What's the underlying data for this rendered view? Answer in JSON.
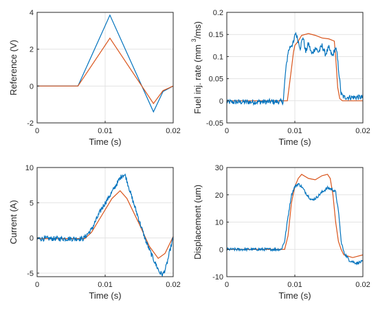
{
  "chart_data": [
    {
      "type": "line",
      "xlabel": "Time (s)",
      "ylabel": "Reference (V)",
      "xlim": [
        0,
        0.02
      ],
      "ylim": [
        -2,
        4
      ],
      "xticks": [
        {
          "v": 0,
          "t": "0"
        },
        {
          "v": 0.01,
          "t": "0.01"
        },
        {
          "v": 0.02,
          "t": "0.02"
        }
      ],
      "yticks": [
        {
          "v": -2,
          "t": "-2"
        },
        {
          "v": 0,
          "t": "0"
        },
        {
          "v": 2,
          "t": "2"
        },
        {
          "v": 4,
          "t": "4"
        }
      ],
      "grid": true,
      "series": [
        {
          "color": "#0072BD",
          "x": [
            0,
            0.006,
            0.0107,
            0.0171,
            0.0185,
            0.02
          ],
          "y": [
            0,
            0,
            3.85,
            -1.4,
            -0.3,
            0
          ]
        },
        {
          "color": "#D95319",
          "x": [
            0,
            0.006,
            0.0107,
            0.0171,
            0.0185,
            0.02
          ],
          "y": [
            0,
            0,
            2.6,
            -0.95,
            -0.25,
            0
          ]
        }
      ]
    },
    {
      "type": "line",
      "xlabel": "Time (s)",
      "ylabel": "Fuel inj. rate (mm",
      "ylabel_sup": "3",
      "ylabel_tail": "/ms)",
      "xlim": [
        0,
        0.02
      ],
      "ylim": [
        -0.05,
        0.2
      ],
      "xticks": [
        {
          "v": 0,
          "t": "0"
        },
        {
          "v": 0.01,
          "t": "0.01"
        },
        {
          "v": 0.02,
          "t": "0.02"
        }
      ],
      "yticks": [
        {
          "v": -0.05,
          "t": "-0.05"
        },
        {
          "v": 0,
          "t": "0"
        },
        {
          "v": 0.05,
          "t": "0.05"
        },
        {
          "v": 0.1,
          "t": "0.1"
        },
        {
          "v": 0.15,
          "t": "0.15"
        },
        {
          "v": 0.2,
          "t": "0.2"
        }
      ],
      "grid": true,
      "series": [
        {
          "color": "#D95319",
          "x": [
            0,
            0.0089,
            0.0094,
            0.0098,
            0.01,
            0.0105,
            0.011,
            0.012,
            0.013,
            0.014,
            0.015,
            0.0158,
            0.016,
            0.0163,
            0.0166,
            0.017,
            0.02
          ],
          "y": [
            0,
            0,
            0.06,
            0.11,
            0.125,
            0.135,
            0.148,
            0.152,
            0.148,
            0.142,
            0.14,
            0.135,
            0.1,
            0.03,
            0.005,
            0,
            0
          ]
        },
        {
          "color": "#0072BD",
          "x": [
            0,
            0.0083,
            0.0086,
            0.009,
            0.0094,
            0.0098,
            0.0101,
            0.0104,
            0.0108,
            0.0112,
            0.0116,
            0.012,
            0.0125,
            0.013,
            0.0135,
            0.014,
            0.0145,
            0.015,
            0.0155,
            0.016,
            0.0162,
            0.0165,
            0.0168,
            0.0172,
            0.02
          ],
          "y": [
            -0.003,
            -0.002,
            0.06,
            0.11,
            0.125,
            0.13,
            0.155,
            0.14,
            0.12,
            0.145,
            0.11,
            0.13,
            0.105,
            0.12,
            0.11,
            0.125,
            0.105,
            0.12,
            0.1,
            0.12,
            0.105,
            0.06,
            0.015,
            0.008,
            0.008
          ],
          "noise": 0.006
        }
      ]
    },
    {
      "type": "line",
      "xlabel": "Time (s)",
      "ylabel": "Current (A)",
      "xlim": [
        0,
        0.02
      ],
      "ylim": [
        -5.5,
        10
      ],
      "xticks": [
        {
          "v": 0,
          "t": "0"
        },
        {
          "v": 0.01,
          "t": "0.01"
        },
        {
          "v": 0.02,
          "t": "0.02"
        }
      ],
      "yticks": [
        {
          "v": -5,
          "t": "-5"
        },
        {
          "v": 0,
          "t": "0"
        },
        {
          "v": 5,
          "t": "5"
        },
        {
          "v": 10,
          "t": "10"
        }
      ],
      "grid": true,
      "series": [
        {
          "color": "#D95319",
          "x": [
            0,
            0.007,
            0.008,
            0.0095,
            0.011,
            0.0122,
            0.0132,
            0.015,
            0.0165,
            0.0178,
            0.0188,
            0.0196,
            0.02
          ],
          "y": [
            -0.1,
            -0.1,
            0.8,
            3.2,
            5.6,
            6.7,
            5.6,
            2.0,
            -1.2,
            -2.9,
            -2.2,
            -0.6,
            0.2
          ],
          "noise": 0
        }
      ]
    },
    {
      "type": "line",
      "xlabel": "Time (s)",
      "ylabel": "Displacement (um)",
      "xlim": [
        0,
        0.02
      ],
      "ylim": [
        -10,
        30
      ],
      "xticks": [
        {
          "v": 0,
          "t": "0"
        },
        {
          "v": 0.01,
          "t": "0.01"
        },
        {
          "v": 0.02,
          "t": "0.02"
        }
      ],
      "yticks": [
        {
          "v": -10,
          "t": "-10"
        },
        {
          "v": 0,
          "t": "0"
        },
        {
          "v": 10,
          "t": "10"
        },
        {
          "v": 20,
          "t": "20"
        },
        {
          "v": 30,
          "t": "30"
        }
      ],
      "grid": true,
      "series": [
        {
          "color": "#D95319",
          "x": [
            0,
            0.0085,
            0.009,
            0.0095,
            0.01,
            0.0105,
            0.011,
            0.012,
            0.013,
            0.014,
            0.0148,
            0.0152,
            0.0156,
            0.016,
            0.0164,
            0.0168,
            0.0172,
            0.0185,
            0.02
          ],
          "y": [
            0,
            0,
            5,
            17,
            23,
            26,
            27.5,
            26,
            25.5,
            27,
            27.5,
            26,
            20,
            10,
            3,
            0,
            -2,
            -3,
            -2
          ]
        },
        {
          "color": "#0072BD",
          "x": [
            0,
            0.008,
            0.0085,
            0.009,
            0.0095,
            0.01,
            0.0105,
            0.011,
            0.0118,
            0.0125,
            0.0132,
            0.014,
            0.0148,
            0.0155,
            0.016,
            0.0165,
            0.0168,
            0.0172,
            0.018,
            0.019,
            0.02
          ],
          "y": [
            0,
            0,
            3,
            12,
            20,
            23,
            24,
            23,
            20,
            18,
            19,
            21,
            22.5,
            22,
            21,
            12,
            3,
            -1,
            -4,
            -5,
            -4.5
          ],
          "noise": 0.5
        }
      ]
    }
  ],
  "current_blue": {
    "color": "#0072BD",
    "x": [
      0,
      0.0068,
      0.008,
      0.0095,
      0.011,
      0.0122,
      0.0126,
      0.013,
      0.014,
      0.015,
      0.016,
      0.017,
      0.018,
      0.0185,
      0.019,
      0.0196,
      0.02
    ],
    "y": [
      -0.1,
      -0.1,
      1.2,
      4.2,
      6.5,
      8.5,
      9.0,
      8.8,
      5.5,
      2.5,
      -0.5,
      -2.8,
      -4.9,
      -5.2,
      -4.0,
      -1.5,
      0
    ],
    "noise": 0.35
  },
  "ref_noise": 0
}
